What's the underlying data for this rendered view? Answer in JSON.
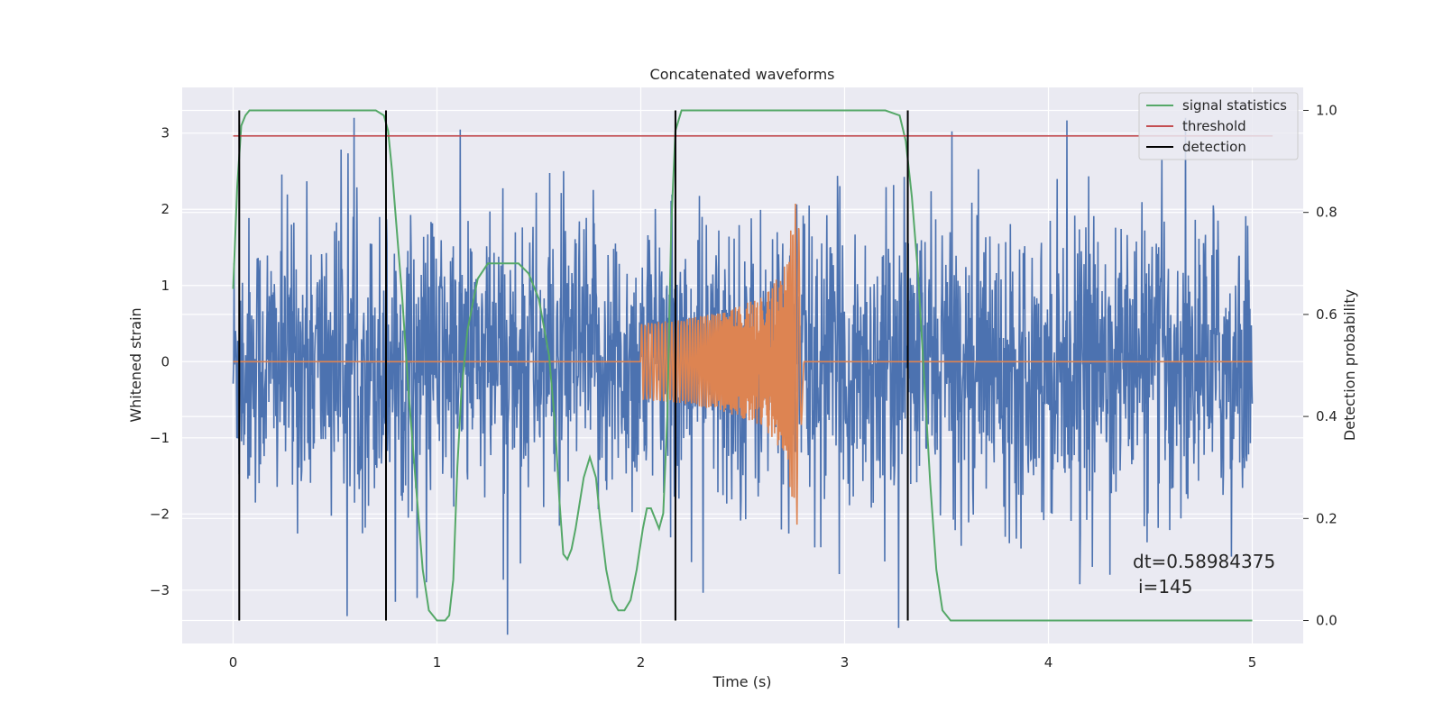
{
  "chart_data": {
    "type": "line",
    "title": "Concatenated waveforms",
    "xlabel": "Time (s)",
    "ylabel": "Whitened strain",
    "y2label": "Detection probability",
    "xlim": [
      -0.25,
      5.25
    ],
    "ylim": [
      -3.7,
      3.6
    ],
    "y2lim": [
      -0.045,
      1.045
    ],
    "x_ticks": [
      0,
      1,
      2,
      3,
      4,
      5
    ],
    "x_tick_labels": [
      "0",
      "1",
      "2",
      "3",
      "4",
      "5"
    ],
    "y_ticks": [
      -3,
      -2,
      -1,
      0,
      1,
      2,
      3
    ],
    "y_tick_labels": [
      "−3",
      "−2",
      "−1",
      "0",
      "1",
      "2",
      "3"
    ],
    "y2_ticks": [
      0.0,
      0.2,
      0.4,
      0.6,
      0.8,
      1.0
    ],
    "y2_tick_labels": [
      "0.0",
      "0.2",
      "0.4",
      "0.6",
      "0.8",
      "1.0"
    ],
    "grid": true,
    "legend_position": "top-right",
    "legend": [
      {
        "label": "signal statistics",
        "color": "#55a868"
      },
      {
        "label": "threshold",
        "color": "#c44e52"
      },
      {
        "label": "detection",
        "color": "#000000"
      }
    ],
    "series": [
      {
        "role": "whitened_noise",
        "axis": "left",
        "color": "#4c72b0",
        "x_range": [
          0,
          5
        ],
        "envelope_approx": {
          "typical_abs": 1.5,
          "max_positive": 3.2,
          "min_negative": -3.6
        }
      },
      {
        "role": "injected_chirp",
        "axis": "left",
        "color": "#dd8452",
        "x": [
          0,
          2.0,
          2.0,
          2.2,
          2.4,
          2.6,
          2.7,
          2.75,
          2.77,
          2.8,
          5.0
        ],
        "amplitude": [
          0,
          0,
          0.5,
          0.55,
          0.65,
          0.85,
          1.2,
          2.0,
          2.2,
          0,
          0
        ]
      },
      {
        "name": "signal statistics",
        "axis": "right",
        "color": "#55a868",
        "x": [
          0.0,
          0.02,
          0.04,
          0.06,
          0.08,
          0.1,
          0.15,
          0.3,
          0.5,
          0.65,
          0.7,
          0.74,
          0.76,
          0.78,
          0.8,
          0.83,
          0.86,
          0.9,
          0.93,
          0.96,
          1.0,
          1.02,
          1.04,
          1.06,
          1.08,
          1.1,
          1.12,
          1.15,
          1.2,
          1.25,
          1.3,
          1.35,
          1.4,
          1.45,
          1.5,
          1.55,
          1.58,
          1.6,
          1.62,
          1.64,
          1.66,
          1.68,
          1.7,
          1.72,
          1.75,
          1.78,
          1.8,
          1.83,
          1.86,
          1.89,
          1.92,
          1.95,
          1.98,
          2.01,
          2.03,
          2.05,
          2.07,
          2.09,
          2.11,
          2.13,
          2.15,
          2.17,
          2.2,
          2.25,
          2.3,
          2.6,
          3.0,
          3.2,
          3.27,
          3.3,
          3.33,
          3.36,
          3.39,
          3.42,
          3.45,
          3.48,
          3.52,
          3.6,
          4.0,
          5.0
        ],
        "y": [
          0.65,
          0.85,
          0.97,
          0.99,
          1.0,
          1.0,
          1.0,
          1.0,
          1.0,
          1.0,
          1.0,
          0.99,
          0.96,
          0.88,
          0.78,
          0.63,
          0.45,
          0.25,
          0.1,
          0.02,
          0.0,
          0.0,
          0.0,
          0.01,
          0.08,
          0.3,
          0.45,
          0.57,
          0.67,
          0.7,
          0.7,
          0.7,
          0.7,
          0.68,
          0.63,
          0.52,
          0.38,
          0.24,
          0.13,
          0.12,
          0.14,
          0.18,
          0.23,
          0.28,
          0.32,
          0.28,
          0.2,
          0.1,
          0.04,
          0.02,
          0.02,
          0.04,
          0.1,
          0.18,
          0.22,
          0.22,
          0.2,
          0.18,
          0.21,
          0.4,
          0.78,
          0.96,
          1.0,
          1.0,
          1.0,
          1.0,
          1.0,
          1.0,
          0.99,
          0.94,
          0.83,
          0.68,
          0.48,
          0.27,
          0.1,
          0.02,
          0.0,
          0.0,
          0.0,
          0.0
        ]
      },
      {
        "name": "threshold",
        "axis": "right",
        "color": "#c44e52",
        "x": [
          0.0,
          5.1
        ],
        "y": [
          0.95,
          0.95
        ]
      },
      {
        "name": "detection",
        "axis": "right",
        "color": "#000000",
        "type": "vlines",
        "x": [
          0.03,
          0.75,
          2.17,
          3.31
        ],
        "y_range": [
          0.0,
          1.0
        ]
      }
    ],
    "annotations": [
      "dt=0.58984375",
      "i=145"
    ]
  }
}
